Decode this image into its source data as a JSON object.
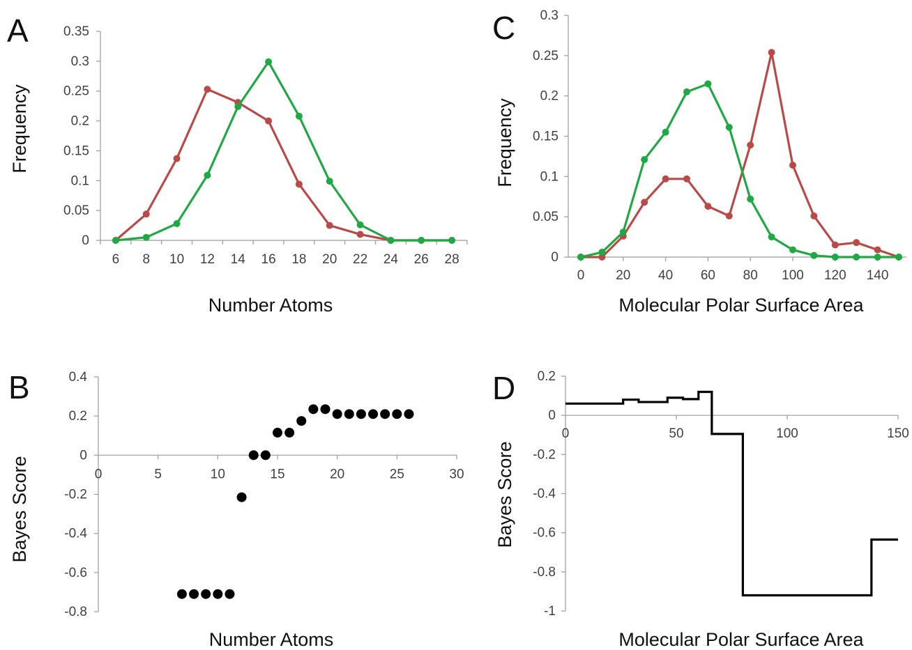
{
  "chart_data": [
    {
      "panel": "A",
      "type": "line",
      "xlabel": "Number Atoms",
      "ylabel": "Frequency",
      "x": [
        6,
        8,
        10,
        12,
        14,
        16,
        18,
        20,
        22,
        24,
        26,
        28
      ],
      "x_tick_labels": [
        "6",
        "8",
        "10",
        "12",
        "14",
        "16",
        "18",
        "20",
        "22",
        "24",
        "26",
        "28"
      ],
      "y_tick_labels": [
        "0",
        "0.05",
        "0.1",
        "0.15",
        "0.2",
        "0.25",
        "0.3",
        "0.35"
      ],
      "ylim": [
        0,
        0.35
      ],
      "series": [
        {
          "color": "#b94a48",
          "values": [
            0,
            0.044,
            0.137,
            0.253,
            0.231,
            0.2,
            0.094,
            0.025,
            0.01,
            0,
            0,
            0
          ]
        },
        {
          "color": "#20a845",
          "values": [
            0,
            0.005,
            0.028,
            0.109,
            0.224,
            0.299,
            0.208,
            0.099,
            0.026,
            0,
            0,
            0
          ]
        }
      ]
    },
    {
      "panel": "B",
      "type": "scatter",
      "xlabel": "Number Atoms",
      "ylabel": "Bayes Score",
      "xlim": [
        0,
        30
      ],
      "ylim": [
        -0.8,
        0.4
      ],
      "x_tick_labels": [
        "0",
        "5",
        "10",
        "15",
        "20",
        "25",
        "30"
      ],
      "y_tick_labels": [
        "-0.8",
        "-0.6",
        "-0.4",
        "-0.2",
        "0",
        "0.2",
        "0.4"
      ],
      "color": "#000000",
      "points": [
        [
          7,
          -0.71
        ],
        [
          8,
          -0.71
        ],
        [
          9,
          -0.71
        ],
        [
          10,
          -0.71
        ],
        [
          11,
          -0.71
        ],
        [
          12,
          -0.215
        ],
        [
          13,
          0
        ],
        [
          14,
          0
        ],
        [
          15,
          0.115
        ],
        [
          16,
          0.115
        ],
        [
          17,
          0.175
        ],
        [
          18,
          0.235
        ],
        [
          19,
          0.235
        ],
        [
          20,
          0.21
        ],
        [
          21,
          0.21
        ],
        [
          22,
          0.21
        ],
        [
          23,
          0.21
        ],
        [
          24,
          0.21
        ],
        [
          25,
          0.21
        ],
        [
          26,
          0.21
        ]
      ]
    },
    {
      "panel": "C",
      "type": "line",
      "xlabel": "Molecular Polar Surface Area",
      "ylabel": "Frequency",
      "xlim": [
        0,
        150
      ],
      "ylim": [
        0,
        0.3
      ],
      "x": [
        0,
        10,
        20,
        30,
        40,
        50,
        60,
        70,
        80,
        90,
        100,
        110,
        120,
        130,
        140,
        150
      ],
      "x_tick_labels": [
        "0",
        "20",
        "40",
        "60",
        "80",
        "100",
        "120",
        "140"
      ],
      "y_tick_labels": [
        "0",
        "0.05",
        "0.1",
        "0.15",
        "0.2",
        "0.25",
        "0.3"
      ],
      "series": [
        {
          "color": "#b94a48",
          "values": [
            0,
            0,
            0.026,
            0.068,
            0.097,
            0.097,
            0.063,
            0.051,
            0.139,
            0.254,
            0.114,
            0.051,
            0.015,
            0.018,
            0.009,
            0
          ]
        },
        {
          "color": "#20a845",
          "values": [
            0,
            0.006,
            0.031,
            0.121,
            0.155,
            0.205,
            0.215,
            0.161,
            0.072,
            0.025,
            0.009,
            0.002,
            0,
            0,
            0,
            0
          ]
        }
      ]
    },
    {
      "panel": "D",
      "type": "line",
      "step": true,
      "xlabel": "Molecular Polar Surface Area",
      "ylabel": "Bayes Score",
      "xlim": [
        0,
        150
      ],
      "ylim": [
        -1,
        0.2
      ],
      "x_tick_labels": [
        "0",
        "50",
        "100",
        "150"
      ],
      "y_tick_labels": [
        "-1",
        "-0.8",
        "-0.6",
        "-0.4",
        "-0.2",
        "0",
        "0.2"
      ],
      "color": "#000000",
      "points": [
        [
          0,
          0.06
        ],
        [
          26,
          0.06
        ],
        [
          26,
          0.08
        ],
        [
          33,
          0.08
        ],
        [
          33,
          0.068
        ],
        [
          46,
          0.068
        ],
        [
          46,
          0.09
        ],
        [
          53,
          0.09
        ],
        [
          53,
          0.083
        ],
        [
          60,
          0.083
        ],
        [
          60,
          0.12
        ],
        [
          66,
          0.12
        ],
        [
          66,
          -0.095
        ],
        [
          80,
          -0.095
        ],
        [
          80,
          -0.92
        ],
        [
          138,
          -0.92
        ],
        [
          138,
          -0.635
        ],
        [
          150,
          -0.635
        ]
      ]
    }
  ]
}
